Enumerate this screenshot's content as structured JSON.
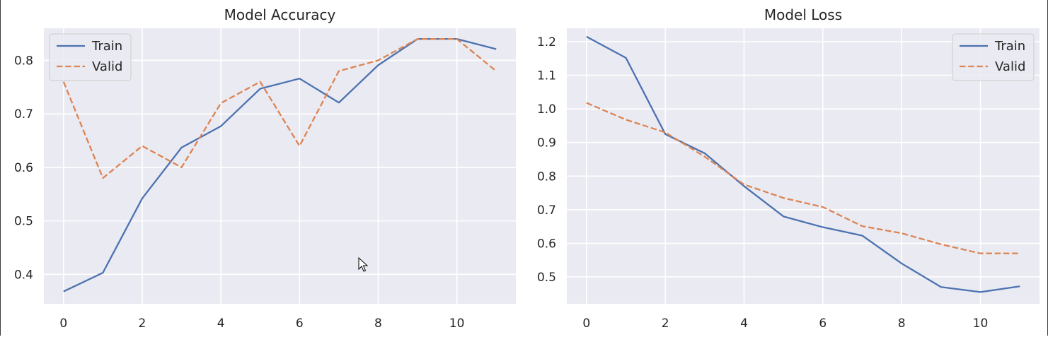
{
  "chart_data": [
    {
      "type": "line",
      "title": "Model Accuracy",
      "xlabel": "",
      "ylabel": "",
      "x": [
        0,
        1,
        2,
        3,
        4,
        5,
        6,
        7,
        8,
        9,
        10,
        11
      ],
      "xlim": [
        -0.5,
        11.5
      ],
      "ylim": [
        0.345,
        0.86
      ],
      "xticks": [
        "0",
        "2",
        "4",
        "6",
        "8",
        "10"
      ],
      "xtick_values": [
        0,
        2,
        4,
        6,
        8,
        10
      ],
      "yticks": [
        "0.4",
        "0.5",
        "0.6",
        "0.7",
        "0.8"
      ],
      "ytick_values": [
        0.4,
        0.5,
        0.6,
        0.7,
        0.8
      ],
      "grid": true,
      "legend": "top-left",
      "series": [
        {
          "name": "Train",
          "style": "solid",
          "color": "#4c72b0",
          "values": [
            0.368,
            0.403,
            0.542,
            0.637,
            0.677,
            0.747,
            0.766,
            0.721,
            0.791,
            0.84,
            0.84,
            0.821
          ]
        },
        {
          "name": "Valid",
          "style": "dashed",
          "color": "#dd8452",
          "values": [
            0.76,
            0.58,
            0.64,
            0.6,
            0.72,
            0.76,
            0.64,
            0.78,
            0.8,
            0.84,
            0.84,
            0.78
          ]
        }
      ]
    },
    {
      "type": "line",
      "title": "Model Loss",
      "xlabel": "",
      "ylabel": "",
      "x": [
        0,
        1,
        2,
        3,
        4,
        5,
        6,
        7,
        8,
        9,
        10,
        11
      ],
      "xlim": [
        -0.5,
        11.5
      ],
      "ylim": [
        0.42,
        1.24
      ],
      "xticks": [
        "0",
        "2",
        "4",
        "6",
        "8",
        "10"
      ],
      "xtick_values": [
        0,
        2,
        4,
        6,
        8,
        10
      ],
      "yticks": [
        "0.5",
        "0.6",
        "0.7",
        "0.8",
        "0.9",
        "1.0",
        "1.1",
        "1.2"
      ],
      "ytick_values": [
        0.5,
        0.6,
        0.7,
        0.8,
        0.9,
        1.0,
        1.1,
        1.2
      ],
      "grid": true,
      "legend": "top-right",
      "series": [
        {
          "name": "Train",
          "style": "solid",
          "color": "#4c72b0",
          "values": [
            1.215,
            1.152,
            0.925,
            0.868,
            0.77,
            0.68,
            0.648,
            0.623,
            0.54,
            0.47,
            0.455,
            0.472
          ]
        },
        {
          "name": "Valid",
          "style": "dashed",
          "color": "#dd8452",
          "values": [
            1.018,
            0.968,
            0.93,
            0.858,
            0.775,
            0.735,
            0.708,
            0.651,
            0.63,
            0.597,
            0.57,
            0.57
          ]
        }
      ]
    }
  ]
}
